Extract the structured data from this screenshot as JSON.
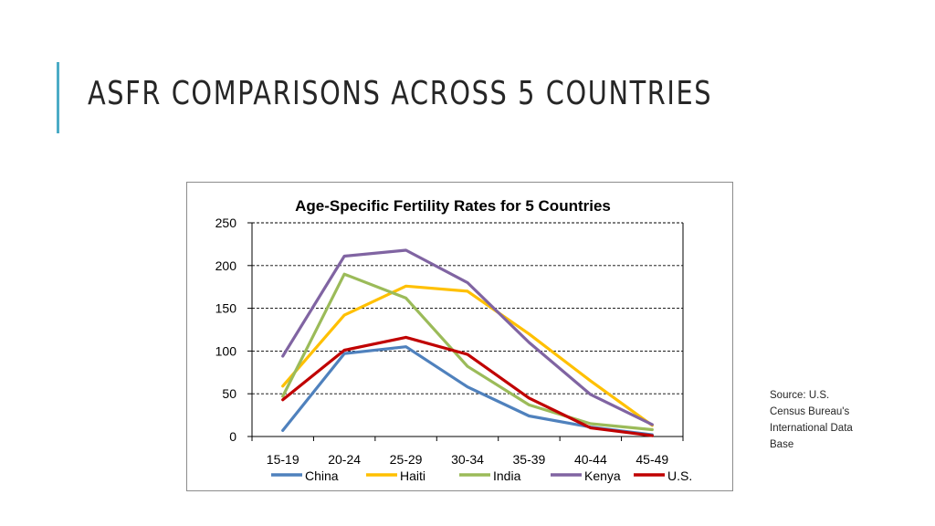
{
  "slide": {
    "title": "ASFR COMPARISONS ACROSS 5 COUNTRIES",
    "source_lines": [
      "Source: U.S.",
      "Census Bureau's",
      "International Data",
      "Base"
    ]
  },
  "chart_data": {
    "type": "line",
    "title": "Age-Specific Fertility  Rates for 5 Countries",
    "xlabel": "",
    "ylabel": "",
    "categories": [
      "15-19",
      "20-24",
      "25-29",
      "30-34",
      "35-39",
      "40-44",
      "45-49"
    ],
    "ylim": [
      0,
      250
    ],
    "yticks": [
      0,
      50,
      100,
      150,
      200,
      250
    ],
    "grid": true,
    "legend_position": "bottom",
    "series": [
      {
        "name": "China",
        "color": "#4f81bd",
        "values": [
          7,
          97,
          105,
          58,
          24,
          11,
          2
        ]
      },
      {
        "name": "Haiti",
        "color": "#ffc000",
        "values": [
          59,
          142,
          176,
          170,
          120,
          65,
          13
        ]
      },
      {
        "name": "India",
        "color": "#9bbb59",
        "values": [
          47,
          190,
          162,
          82,
          37,
          15,
          8
        ]
      },
      {
        "name": "Kenya",
        "color": "#8064a2",
        "values": [
          94,
          211,
          218,
          180,
          110,
          49,
          14
        ]
      },
      {
        "name": "U.S.",
        "color": "#c00000",
        "values": [
          43,
          101,
          116,
          96,
          45,
          10,
          1
        ]
      }
    ]
  }
}
